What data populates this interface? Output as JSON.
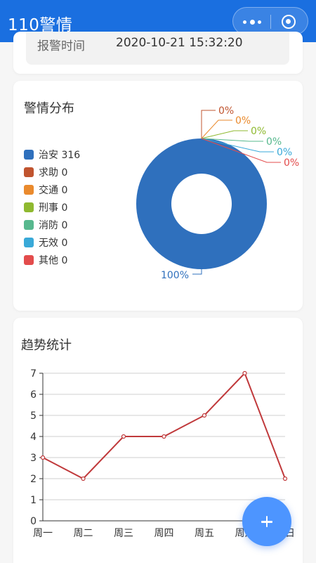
{
  "navbar": {
    "title": "110警情",
    "menu_icon": "more-dots-icon",
    "close_icon": "target-circle-icon",
    "bg_color": "#1a6fe0"
  },
  "info": {
    "label": "报警时间",
    "value": "2020-10-21 15:32:20"
  },
  "pie_section": {
    "title": "警情分布"
  },
  "trend_section": {
    "title": "趋势统计"
  },
  "fab": {
    "icon": "plus-icon",
    "color": "#4d95ff"
  },
  "chart_data": [
    {
      "type": "pie",
      "categories": [
        "治安",
        "求助",
        "交通",
        "刑事",
        "消防",
        "无效",
        "其他"
      ],
      "values": [
        316,
        0,
        0,
        0,
        0,
        0,
        0
      ],
      "colors": [
        "#2f70bd",
        "#c0542f",
        "#ea8a2d",
        "#8fb930",
        "#57b88e",
        "#39a9d8",
        "#e34c4c"
      ],
      "legend_labels": [
        "治安 316",
        "求助 0",
        "交通 0",
        "刑事 0",
        "消防 0",
        "无效 0",
        "其他 0"
      ],
      "slice_labels": [
        "100%",
        "0%",
        "0%",
        "0%",
        "0%",
        "0%",
        "0%"
      ],
      "donut": true,
      "legend_position": "left"
    },
    {
      "type": "line",
      "categories": [
        "周一",
        "周二",
        "周三",
        "周四",
        "周五",
        "周六",
        "周日"
      ],
      "series": [
        {
          "values": [
            3,
            2,
            4,
            4,
            5,
            7,
            2
          ],
          "color": "#c0393b"
        }
      ],
      "yticks": [
        0,
        1,
        2,
        3,
        4,
        5,
        6,
        7
      ],
      "ylim": [
        0,
        7
      ],
      "grid": true
    }
  ]
}
